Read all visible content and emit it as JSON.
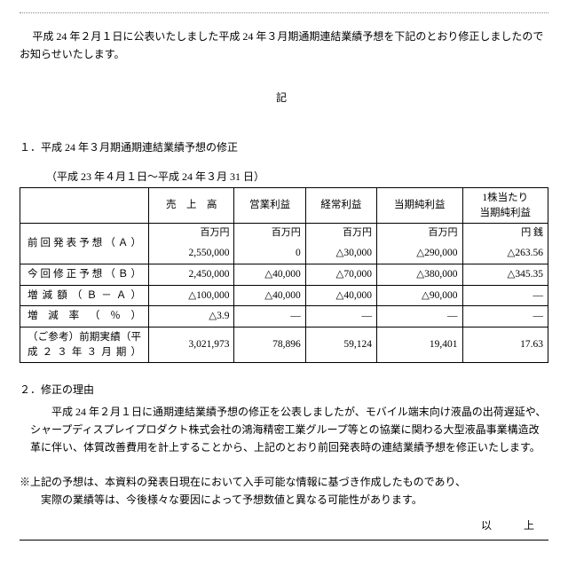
{
  "dotted_border_color": "#888888",
  "background_color": "#ffffff",
  "text_color": "#000000",
  "intro": "平成 24 年２月１日に公表いたしました平成 24 年３月期通期連結業績予想を下記のとおり修正しましたのでお知らせいたします。",
  "marker": "記",
  "section1_heading": "１．平成 24 年３月期通期連結業績予想の修正",
  "period": "（平成 23 年４月１日～平成 24 年３月 31 日）",
  "table": {
    "columns": [
      "売　上　高",
      "営業利益",
      "経常利益",
      "当期純利益",
      "1株当たり\n当期純利益"
    ],
    "units": [
      "百万円",
      "百万円",
      "百万円",
      "百万円",
      "円 銭"
    ],
    "rows": [
      {
        "label": "前回発表予想（Ａ）",
        "vals": [
          "2,550,000",
          "0",
          "△30,000",
          "△290,000",
          "△263.56"
        ]
      },
      {
        "label": "今回修正予想（Ｂ）",
        "vals": [
          "2,450,000",
          "△40,000",
          "△70,000",
          "△380,000",
          "△345.35"
        ]
      },
      {
        "label": "増減額（Ｂ－Ａ）",
        "vals": [
          "△100,000",
          "△40,000",
          "△40,000",
          "△90,000",
          "—"
        ]
      },
      {
        "label": "増減率（％）",
        "vals": [
          "△3.9",
          "—",
          "—",
          "—",
          "—"
        ]
      },
      {
        "label": "（ご参考）前期実績（平成２３年３月期）",
        "vals": [
          "3,021,973",
          "78,896",
          "59,124",
          "19,401",
          "17.63"
        ]
      }
    ]
  },
  "section2_heading": "２．修正の理由",
  "section2_body": "平成 24 年２月１日に通期連結業績予想の修正を公表しましたが、モバイル端末向け液晶の出荷遅延や、シャープディスプレイプロダクト株式会社の鴻海精密工業グループ等との協業に関わる大型液晶事業構造改革に伴い、体質改善費用を計上することから、上記のとおり前回発表時の連結業績予想を修正いたします。",
  "disclaimer_l1": "※上記の予想は、本資料の発表日現在において入手可能な情報に基づき作成したものであり、",
  "disclaimer_l2": "実際の業績等は、今後様々な要因によって予想数値と異なる可能性があります。",
  "closing": "以　上"
}
